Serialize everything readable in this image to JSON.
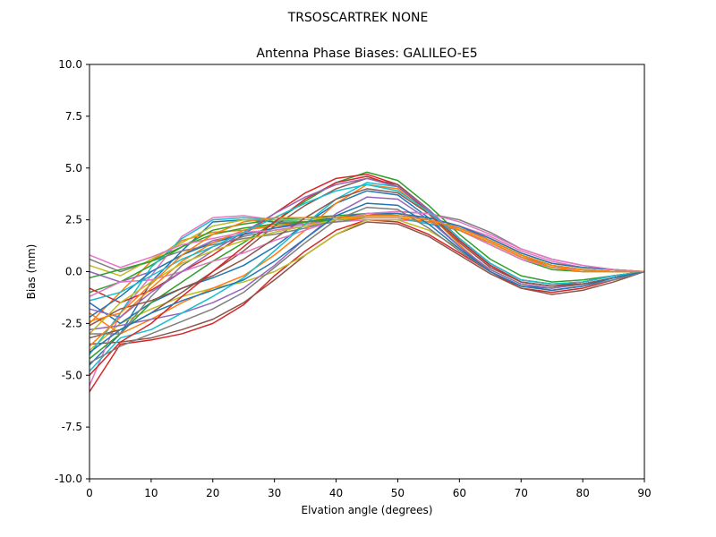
{
  "suptitle": "TRSOSCARTREK    NONE",
  "chart_data": {
    "type": "line",
    "title": "Antenna Phase Biases: GALILEO-E5",
    "xlabel": "Elvation angle (degrees)",
    "ylabel": "Bias (mm)",
    "xlim": [
      0,
      90
    ],
    "ylim": [
      -10,
      10
    ],
    "xticks": [
      0,
      10,
      20,
      30,
      40,
      50,
      60,
      70,
      80,
      90
    ],
    "yticks": [
      -10.0,
      -7.5,
      -5.0,
      -2.5,
      0.0,
      2.5,
      5.0,
      7.5,
      10.0
    ],
    "x": [
      0,
      5,
      10,
      15,
      20,
      25,
      30,
      35,
      40,
      45,
      50,
      55,
      60,
      65,
      70,
      75,
      80,
      85,
      90
    ],
    "grid": false,
    "palette": [
      "#1f77b4",
      "#ff7f0e",
      "#2ca02c",
      "#d62728",
      "#9467bd",
      "#8c564b",
      "#e377c2",
      "#7f7f7f",
      "#bcbd22",
      "#17becf"
    ],
    "series": [
      {
        "values": [
          -4.5,
          -3.0,
          -0.5,
          1.0,
          2.4,
          2.5,
          2.4,
          2.4,
          2.5,
          2.6,
          2.6,
          2.4,
          2.1,
          1.5,
          0.8,
          0.3,
          0.1,
          0.0,
          0.0
        ]
      },
      {
        "values": [
          -2.5,
          -1.0,
          0.5,
          1.5,
          1.9,
          2.0,
          2.2,
          2.4,
          2.6,
          2.8,
          2.8,
          2.6,
          2.2,
          1.6,
          0.9,
          0.4,
          0.2,
          0.1,
          0.0
        ]
      },
      {
        "values": [
          -1.0,
          -0.5,
          0.3,
          1.2,
          2.0,
          2.3,
          2.5,
          2.6,
          2.7,
          2.8,
          2.7,
          2.5,
          2.0,
          1.3,
          0.6,
          0.1,
          0.0,
          0.0,
          0.0
        ]
      },
      {
        "values": [
          -5.8,
          -3.5,
          -3.3,
          -3.0,
          -2.5,
          -1.6,
          -0.2,
          1.0,
          2.0,
          2.5,
          2.4,
          1.8,
          0.9,
          0.0,
          -0.8,
          -1.0,
          -0.8,
          -0.4,
          0.0
        ]
      },
      {
        "values": [
          0.0,
          -0.5,
          0.0,
          0.8,
          1.5,
          1.8,
          2.1,
          2.3,
          2.5,
          2.7,
          2.8,
          2.6,
          2.2,
          1.5,
          0.8,
          0.3,
          0.1,
          0.0,
          0.0
        ]
      },
      {
        "values": [
          -3.5,
          -3.4,
          -3.2,
          -2.8,
          -2.3,
          -1.5,
          -0.4,
          0.8,
          1.8,
          2.4,
          2.3,
          1.7,
          0.8,
          -0.1,
          -0.8,
          -1.1,
          -0.9,
          -0.5,
          0.0
        ]
      },
      {
        "values": [
          -5.5,
          -2.0,
          -0.2,
          1.7,
          2.6,
          2.7,
          2.5,
          2.3,
          2.4,
          2.5,
          2.5,
          2.4,
          2.2,
          1.7,
          1.0,
          0.5,
          0.2,
          0.1,
          0.0
        ]
      },
      {
        "values": [
          0.6,
          0.0,
          0.5,
          1.0,
          1.3,
          1.6,
          1.8,
          2.1,
          2.5,
          2.8,
          2.9,
          2.8,
          2.5,
          1.9,
          1.1,
          0.6,
          0.3,
          0.1,
          0.0
        ]
      },
      {
        "values": [
          -3.8,
          -2.5,
          -1.8,
          -1.2,
          -0.8,
          -0.5,
          0.0,
          0.8,
          1.8,
          2.5,
          2.5,
          2.0,
          1.1,
          0.1,
          -0.6,
          -0.8,
          -0.6,
          -0.3,
          0.0
        ]
      },
      {
        "values": [
          -4.0,
          -2.0,
          0.2,
          1.6,
          2.5,
          2.6,
          2.5,
          2.4,
          2.5,
          2.6,
          2.6,
          2.3,
          2.0,
          1.4,
          0.7,
          0.2,
          0.1,
          0.0,
          0.0
        ]
      },
      {
        "values": [
          -1.5,
          -2.5,
          -1.5,
          -0.8,
          -0.3,
          0.3,
          1.2,
          2.3,
          3.3,
          3.9,
          3.7,
          2.6,
          1.2,
          0.0,
          -0.7,
          -0.8,
          -0.6,
          -0.3,
          0.0
        ]
      },
      {
        "values": [
          -2.0,
          -3.0,
          -2.3,
          -1.5,
          -0.8,
          -0.2,
          0.8,
          2.0,
          3.3,
          4.2,
          4.0,
          2.8,
          1.3,
          0.0,
          -0.7,
          -0.9,
          -0.7,
          -0.3,
          0.0
        ]
      },
      {
        "values": [
          -4.2,
          -3.0,
          -1.5,
          -0.5,
          0.5,
          1.4,
          2.4,
          3.4,
          4.3,
          4.8,
          4.4,
          3.2,
          1.8,
          0.6,
          -0.2,
          -0.5,
          -0.4,
          -0.2,
          0.0
        ]
      },
      {
        "values": [
          -0.8,
          -1.5,
          -0.9,
          0.0,
          0.8,
          1.8,
          2.8,
          3.8,
          4.5,
          4.7,
          4.2,
          3.0,
          1.5,
          0.3,
          -0.5,
          -0.7,
          -0.5,
          -0.2,
          0.0
        ]
      },
      {
        "values": [
          -2.8,
          -2.6,
          -2.3,
          -2.0,
          -1.5,
          -0.8,
          0.3,
          1.6,
          2.8,
          3.6,
          3.5,
          2.5,
          1.2,
          0.1,
          -0.6,
          -0.8,
          -0.6,
          -0.3,
          0.0
        ]
      },
      {
        "values": [
          -3.2,
          -2.8,
          -2.0,
          -1.0,
          0.0,
          1.0,
          2.2,
          3.2,
          4.0,
          4.5,
          4.2,
          3.0,
          1.6,
          0.4,
          -0.4,
          -0.6,
          -0.5,
          -0.2,
          0.0
        ]
      },
      {
        "values": [
          -1.2,
          -0.5,
          -0.4,
          0.0,
          0.5,
          0.9,
          1.5,
          2.0,
          2.5,
          2.8,
          2.8,
          2.5,
          2.0,
          1.3,
          0.6,
          0.2,
          0.1,
          0.0,
          0.0
        ]
      },
      {
        "values": [
          -3.0,
          -3.0,
          -1.2,
          0.3,
          1.2,
          1.7,
          2.0,
          2.2,
          2.4,
          2.6,
          2.6,
          2.4,
          2.0,
          1.4,
          0.7,
          0.3,
          0.1,
          0.0,
          0.0
        ]
      },
      {
        "values": [
          0.3,
          -0.2,
          0.6,
          1.4,
          2.2,
          2.5,
          2.5,
          2.5,
          2.6,
          2.7,
          2.7,
          2.5,
          2.1,
          1.5,
          0.8,
          0.3,
          0.1,
          0.0,
          0.0
        ]
      },
      {
        "values": [
          -4.8,
          -3.2,
          -2.8,
          -2.0,
          -1.2,
          -0.3,
          1.0,
          2.3,
          3.5,
          4.3,
          4.1,
          2.9,
          1.5,
          0.3,
          -0.5,
          -0.7,
          -0.6,
          -0.3,
          0.0
        ]
      },
      {
        "values": [
          -2.2,
          -1.2,
          0.0,
          0.8,
          1.4,
          1.8,
          2.1,
          2.4,
          2.6,
          2.8,
          2.8,
          2.6,
          2.2,
          1.6,
          0.9,
          0.4,
          0.2,
          0.1,
          0.0
        ]
      },
      {
        "values": [
          -3.6,
          -2.2,
          -0.8,
          0.5,
          1.4,
          2.0,
          2.3,
          2.4,
          2.5,
          2.6,
          2.6,
          2.4,
          2.0,
          1.4,
          0.7,
          0.2,
          0.0,
          0.0,
          0.0
        ]
      },
      {
        "values": [
          -0.3,
          0.1,
          0.5,
          1.2,
          1.8,
          2.1,
          2.3,
          2.4,
          2.5,
          2.7,
          2.7,
          2.5,
          2.1,
          1.5,
          0.8,
          0.3,
          0.1,
          0.0,
          0.0
        ]
      },
      {
        "values": [
          -5.0,
          -3.4,
          -2.5,
          -1.2,
          0.0,
          1.2,
          2.4,
          3.5,
          4.3,
          4.6,
          4.1,
          2.9,
          1.5,
          0.3,
          -0.5,
          -0.7,
          -0.6,
          -0.3,
          0.0
        ]
      },
      {
        "values": [
          -1.8,
          -2.2,
          -1.0,
          0.0,
          1.0,
          1.9,
          2.8,
          3.6,
          4.2,
          4.5,
          4.1,
          3.0,
          1.6,
          0.4,
          -0.4,
          -0.6,
          -0.5,
          -0.2,
          0.0
        ]
      },
      {
        "values": [
          -2.6,
          -1.8,
          -1.4,
          -0.8,
          -0.2,
          0.6,
          1.6,
          2.6,
          3.5,
          4.0,
          3.8,
          2.8,
          1.4,
          0.2,
          -0.5,
          -0.7,
          -0.6,
          -0.3,
          0.0
        ]
      },
      {
        "values": [
          0.8,
          0.2,
          0.7,
          1.3,
          1.6,
          1.9,
          2.0,
          2.2,
          2.5,
          2.8,
          2.9,
          2.8,
          2.4,
          1.8,
          1.1,
          0.6,
          0.3,
          0.1,
          0.0
        ]
      },
      {
        "values": [
          -4.4,
          -3.6,
          -3.0,
          -2.4,
          -1.8,
          -1.0,
          0.2,
          1.4,
          2.5,
          3.1,
          3.0,
          2.1,
          1.0,
          0.0,
          -0.7,
          -0.9,
          -0.7,
          -0.4,
          0.0
        ]
      },
      {
        "values": [
          -3.0,
          -1.5,
          -0.5,
          0.4,
          1.0,
          1.5,
          1.9,
          2.2,
          2.5,
          2.7,
          2.7,
          2.5,
          2.1,
          1.5,
          0.8,
          0.3,
          0.1,
          0.0,
          0.0
        ]
      },
      {
        "values": [
          -1.4,
          -1.0,
          -0.2,
          0.6,
          1.2,
          1.9,
          2.6,
          3.3,
          3.9,
          4.2,
          3.9,
          2.9,
          1.6,
          0.4,
          -0.4,
          -0.6,
          -0.5,
          -0.2,
          0.0
        ]
      },
      {
        "values": [
          -3.9,
          -2.8,
          -2.0,
          -1.4,
          -0.9,
          -0.4,
          0.5,
          1.6,
          2.7,
          3.3,
          3.2,
          2.3,
          1.1,
          0.0,
          -0.7,
          -0.9,
          -0.7,
          -0.3,
          0.0
        ]
      },
      {
        "values": [
          -2.4,
          -2.0,
          -0.6,
          0.8,
          1.8,
          2.4,
          2.6,
          2.6,
          2.6,
          2.7,
          2.7,
          2.5,
          2.1,
          1.5,
          0.8,
          0.3,
          0.1,
          0.0,
          0.0
        ]
      }
    ]
  }
}
